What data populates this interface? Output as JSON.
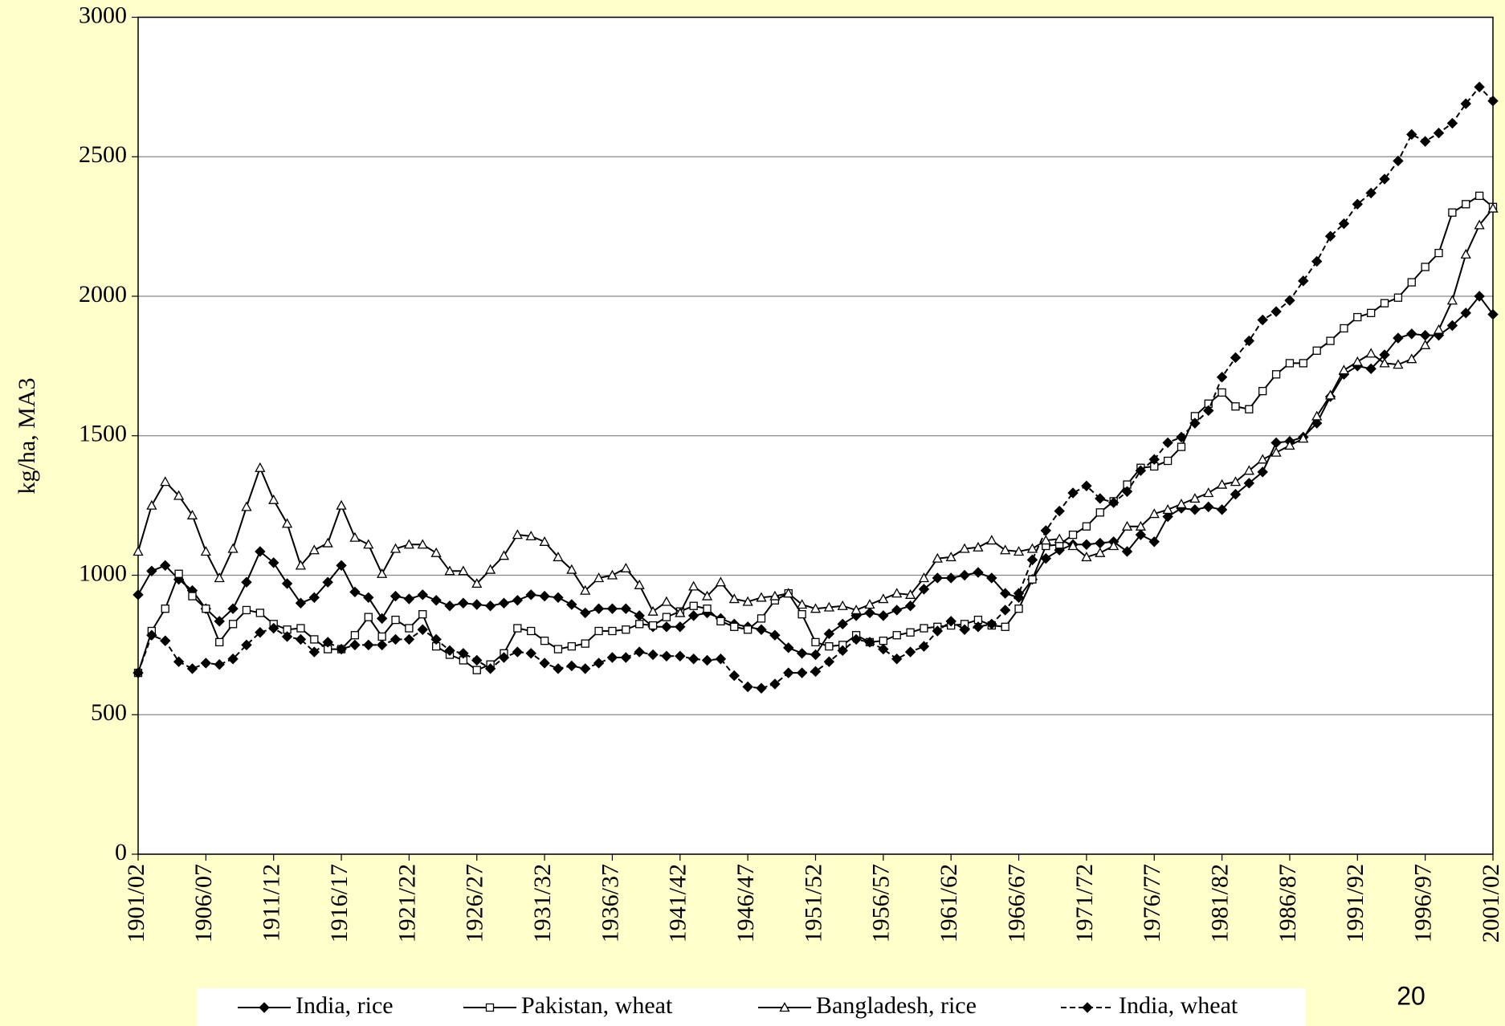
{
  "chart_data": {
    "type": "line",
    "y_label": "kg/ha, MA3",
    "page_number": "20",
    "background": "#ffffcc",
    "grid": true,
    "legend": "bottom",
    "ylim": [
      0,
      3000
    ],
    "yticks": [
      0,
      500,
      1000,
      1500,
      2000,
      2500,
      3000
    ],
    "categories": [
      "1901/02",
      null,
      null,
      null,
      null,
      "1906/07",
      null,
      null,
      null,
      null,
      "1911/12",
      null,
      null,
      null,
      null,
      "1916/17",
      null,
      null,
      null,
      null,
      "1921/22",
      null,
      null,
      null,
      null,
      "1926/27",
      null,
      null,
      null,
      null,
      "1931/32",
      null,
      null,
      null,
      null,
      "1936/37",
      null,
      null,
      null,
      null,
      "1941/42",
      null,
      null,
      null,
      null,
      "1946/47",
      null,
      null,
      null,
      null,
      "1951/52",
      null,
      null,
      null,
      null,
      "1956/57",
      null,
      null,
      null,
      null,
      "1961/62",
      null,
      null,
      null,
      null,
      "1966/67",
      null,
      null,
      null,
      null,
      "1971/72",
      null,
      null,
      null,
      null,
      "1976/77",
      null,
      null,
      null,
      null,
      "1981/82",
      null,
      null,
      null,
      null,
      "1986/87",
      null,
      null,
      null,
      null,
      "1991/92",
      null,
      null,
      null,
      null,
      "1996/97",
      null,
      null,
      null,
      null,
      "2001/02"
    ],
    "series": [
      {
        "name": "India, rice",
        "color": "#000000",
        "marker": "diamond",
        "line_style": "solid",
        "values": [
          930,
          1015,
          1035,
          985,
          945,
          880,
          835,
          880,
          975,
          1085,
          1045,
          970,
          900,
          920,
          975,
          1035,
          940,
          920,
          845,
          925,
          915,
          930,
          910,
          890,
          900,
          895,
          890,
          900,
          910,
          930,
          925,
          920,
          895,
          865,
          880,
          880,
          880,
          855,
          815,
          815,
          815,
          855,
          865,
          845,
          825,
          815,
          805,
          785,
          740,
          720,
          715,
          790,
          825,
          855,
          865,
          855,
          875,
          890,
          950,
          990,
          990,
          1000,
          1010,
          990,
          935,
          920,
          985,
          1060,
          1090,
          1110,
          1110,
          1115,
          1120,
          1085,
          1145,
          1120,
          1210,
          1240,
          1235,
          1245,
          1235,
          1290,
          1330,
          1370,
          1475,
          1480,
          1495,
          1545,
          1640,
          1720,
          1750,
          1740,
          1790,
          1850,
          1865,
          1860,
          1860,
          1895,
          1940,
          2000,
          1935
        ]
      },
      {
        "name": "Pakistan, wheat",
        "color": "#000000",
        "marker": "square",
        "line_style": "solid",
        "values": [
          650,
          800,
          880,
          1005,
          925,
          880,
          760,
          825,
          875,
          865,
          825,
          805,
          810,
          770,
          735,
          735,
          785,
          850,
          780,
          840,
          810,
          860,
          745,
          715,
          695,
          660,
          680,
          720,
          810,
          800,
          765,
          735,
          745,
          755,
          800,
          800,
          805,
          825,
          820,
          850,
          870,
          890,
          880,
          835,
          815,
          805,
          845,
          910,
          935,
          860,
          760,
          745,
          750,
          785,
          760,
          765,
          785,
          795,
          810,
          815,
          820,
          825,
          840,
          820,
          815,
          880,
          985,
          1105,
          1110,
          1145,
          1175,
          1225,
          1265,
          1325,
          1385,
          1390,
          1410,
          1460,
          1570,
          1615,
          1655,
          1605,
          1595,
          1660,
          1720,
          1760,
          1760,
          1805,
          1840,
          1885,
          1925,
          1940,
          1975,
          1995,
          2050,
          2105,
          2155,
          2300,
          2330,
          2360,
          2320
        ]
      },
      {
        "name": "Bangladesh, rice",
        "color": "#000000",
        "marker": "triangle",
        "line_style": "solid",
        "values": [
          1085,
          1250,
          1335,
          1285,
          1215,
          1085,
          990,
          1095,
          1245,
          1385,
          1270,
          1185,
          1035,
          1090,
          1115,
          1250,
          1135,
          1110,
          1005,
          1095,
          1110,
          1110,
          1080,
          1015,
          1015,
          970,
          1020,
          1070,
          1145,
          1140,
          1120,
          1065,
          1020,
          945,
          990,
          1000,
          1025,
          965,
          870,
          905,
          865,
          960,
          925,
          975,
          915,
          905,
          920,
          925,
          935,
          895,
          880,
          885,
          890,
          875,
          895,
          915,
          935,
          930,
          990,
          1060,
          1065,
          1095,
          1100,
          1125,
          1090,
          1085,
          1095,
          1125,
          1130,
          1105,
          1065,
          1080,
          1105,
          1175,
          1175,
          1220,
          1235,
          1255,
          1275,
          1295,
          1325,
          1335,
          1375,
          1415,
          1440,
          1465,
          1490,
          1570,
          1645,
          1735,
          1765,
          1795,
          1760,
          1755,
          1775,
          1825,
          1880,
          1985,
          2150,
          2255,
          2315
        ]
      },
      {
        "name": "India, wheat",
        "color": "#000000",
        "marker": "diamond",
        "line_style": "dashed",
        "values": [
          650,
          785,
          765,
          690,
          665,
          685,
          680,
          700,
          750,
          795,
          810,
          780,
          770,
          725,
          760,
          735,
          750,
          750,
          750,
          770,
          770,
          805,
          770,
          730,
          720,
          695,
          665,
          705,
          725,
          720,
          685,
          665,
          675,
          665,
          685,
          705,
          705,
          725,
          715,
          710,
          710,
          700,
          695,
          700,
          640,
          600,
          595,
          610,
          650,
          650,
          655,
          690,
          730,
          770,
          760,
          735,
          700,
          725,
          745,
          800,
          835,
          805,
          815,
          825,
          875,
          935,
          1055,
          1160,
          1230,
          1295,
          1320,
          1275,
          1260,
          1300,
          1375,
          1415,
          1475,
          1495,
          1545,
          1590,
          1710,
          1780,
          1840,
          1915,
          1945,
          1985,
          2055,
          2125,
          2215,
          2260,
          2330,
          2370,
          2420,
          2485,
          2580,
          2555,
          2585,
          2620,
          2690,
          2750,
          2700
        ]
      }
    ]
  }
}
